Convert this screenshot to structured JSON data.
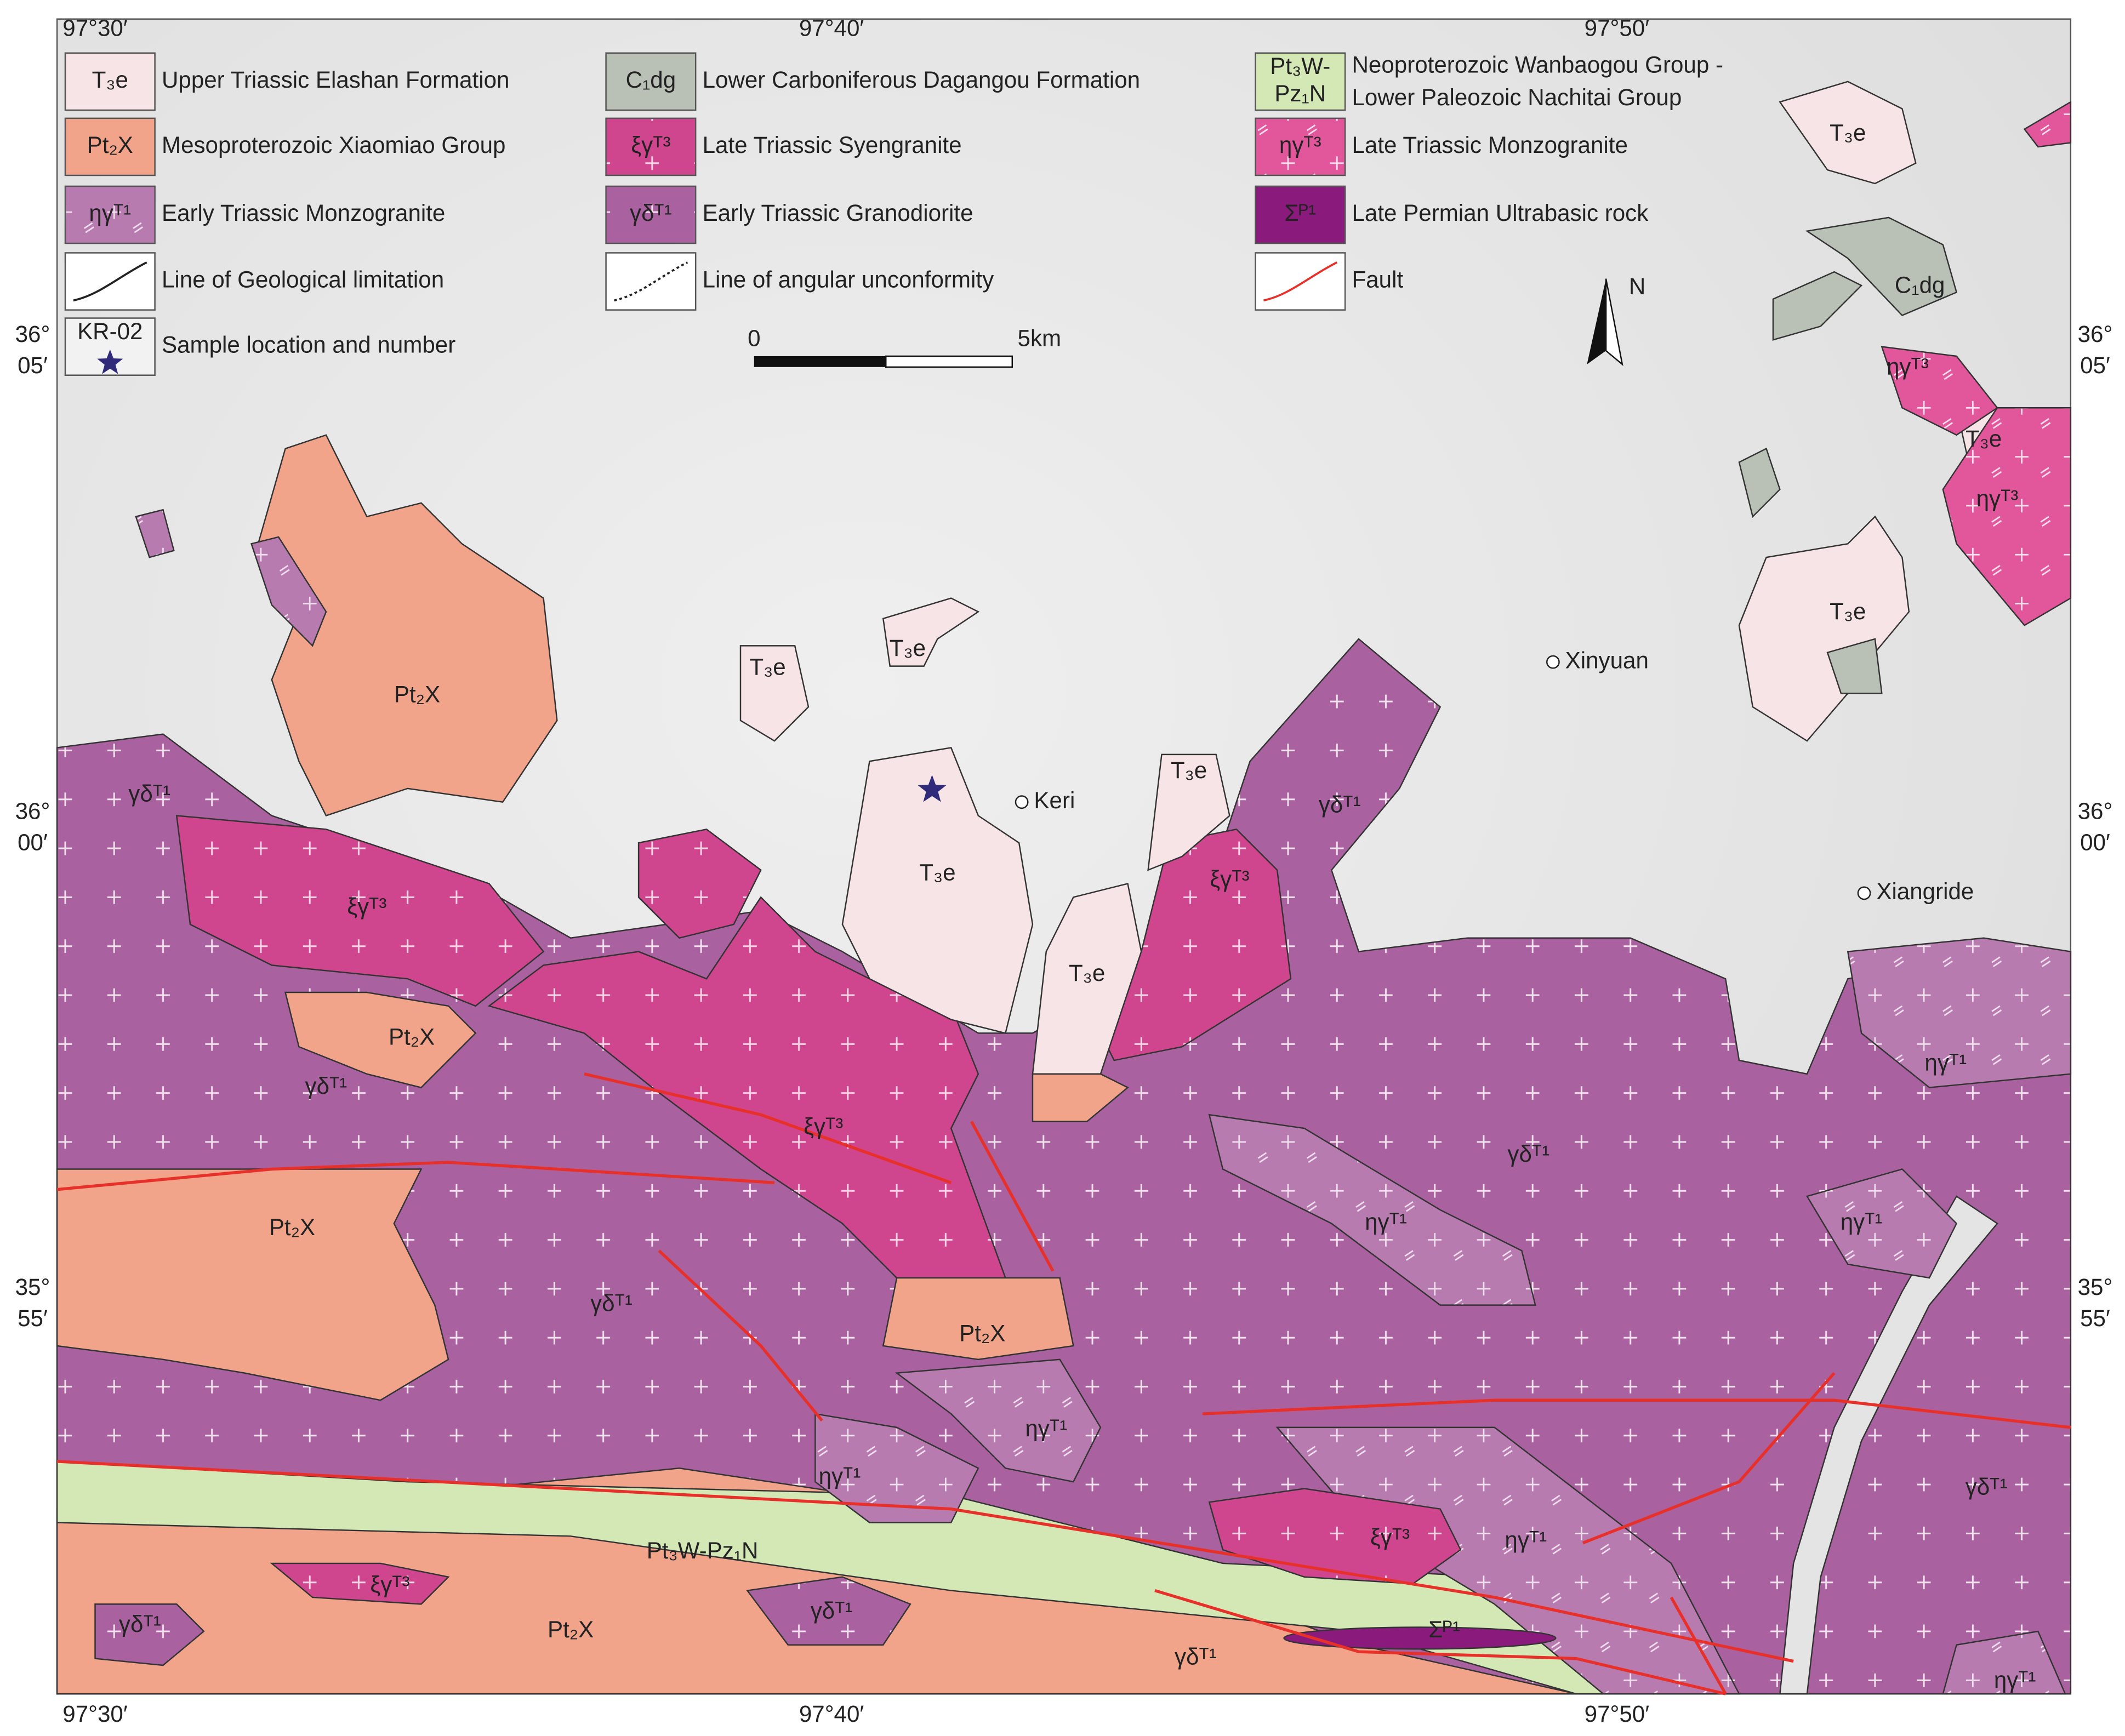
{
  "coordinates": {
    "top": [
      "97°30′",
      "97°40′",
      "97°50′"
    ],
    "bottom": [
      "97°30′",
      "97°40′",
      "97°50′"
    ],
    "left": [
      {
        "deg": "36°",
        "min": "05′"
      },
      {
        "deg": "36°",
        "min": "00′"
      },
      {
        "deg": "35°",
        "min": "55′"
      }
    ],
    "right": [
      {
        "deg": "36°",
        "min": "05′"
      },
      {
        "deg": "36°",
        "min": "00′"
      },
      {
        "deg": "35°",
        "min": "55′"
      }
    ]
  },
  "legend": [
    {
      "symbol": "T₃e",
      "label": "Upper Triassic Elashan Formation"
    },
    {
      "symbol": "Pt₂X",
      "label": "Mesoproterozoic Xiaomiao Group"
    },
    {
      "symbol": "ηγᵀ¹",
      "label": "Early Triassic Monzogranite"
    },
    {
      "label": "Line of Geological limitation"
    },
    {
      "symbol": "KR-02",
      "label": "Sample location and number"
    },
    {
      "symbol": "C₁dg",
      "label": "Lower Carboniferous Dagangou Formation"
    },
    {
      "symbol": "ξγᵀ³",
      "label": "Late Triassic Syengranite"
    },
    {
      "symbol": "γδᵀ¹",
      "label": "Early Triassic Granodiorite"
    },
    {
      "label": "Line of angular unconformity"
    },
    {
      "symbol": [
        "Pt₃W-",
        "Pz₁N"
      ],
      "label": [
        "Neoproterozoic Wanbaogou Group -",
        "Lower Paleozoic Nachitai Group"
      ]
    },
    {
      "symbol": "ηγᵀ³",
      "label": "Late Triassic Monzogranite"
    },
    {
      "symbol": "Σᴾ¹",
      "label": "Late Permian Ultrabasic rock"
    },
    {
      "label": "Fault"
    }
  ],
  "scale_bar": {
    "start": "0",
    "end": "5km"
  },
  "north": "N",
  "places": [
    "Keri",
    "Xinyuan",
    "Xiangride"
  ],
  "map_labels": [
    "Pt₂X",
    "γδᵀ¹",
    "ξγᵀ³",
    "Pt₂X",
    "γδᵀ¹",
    "ξγᵀ³",
    "Pt₂X",
    "γδᵀ¹",
    "Pt₂X",
    "ηγᵀ¹",
    "ηγᵀ¹",
    "Pt₃W-Pz₁N",
    "ξγᵀ³",
    "γδᵀ¹",
    "Pt₂X",
    "γδᵀ¹",
    "γδᵀ¹",
    "Σᴾ¹",
    "ξγᵀ³",
    "ηγᵀ¹",
    "γδᵀ¹",
    "ηγᵀ¹",
    "ηγᵀ¹",
    "ηγᵀ¹",
    "γδᵀ¹",
    "ηγᵀ¹",
    "γδᵀ¹",
    "ξγᵀ³",
    "T₃e",
    "T₃e",
    "T₃e",
    "T₃e",
    "T₃e",
    "T₃e",
    "T₃e",
    "T₃e",
    "ηγᵀ³",
    "ηγᵀ³",
    "C₁dg"
  ]
}
